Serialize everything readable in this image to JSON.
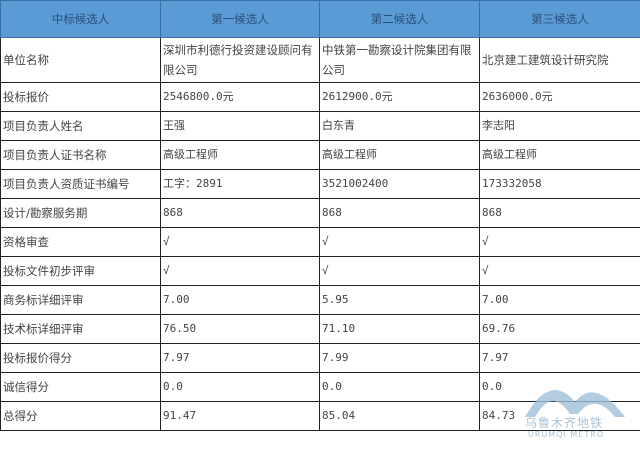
{
  "headers": [
    "中标候选人",
    "第一候选人",
    "第二候选人",
    "第三候选人"
  ],
  "rows": [
    {
      "label": "单位名称",
      "values": [
        "深圳市利德行投资建设顾问有限公司",
        "中铁第一勘察设计院集团有限公司",
        "北京建工建筑设计研究院"
      ]
    },
    {
      "label": "投标报价",
      "values": [
        "2546800.0元",
        "2612900.0元",
        "2636000.0元"
      ]
    },
    {
      "label": "项目负责人姓名",
      "values": [
        "王强",
        "白东青",
        "李志阳"
      ]
    },
    {
      "label": "项目负责人证书名称",
      "values": [
        "高级工程师",
        "高级工程师",
        "高级工程师"
      ]
    },
    {
      "label": "项目负责人资质证书编号",
      "values": [
        "工字：2891",
        "3521002400",
        "173332058"
      ]
    },
    {
      "label": "设计/勘察服务期",
      "values": [
        "868",
        "868",
        "868"
      ]
    },
    {
      "label": "资格审查",
      "values": [
        "√",
        "√",
        "√"
      ]
    },
    {
      "label": "投标文件初步评审",
      "values": [
        "√",
        "√",
        "√"
      ]
    },
    {
      "label": "商务标详细评审",
      "values": [
        "7.00",
        "5.95",
        "7.00"
      ]
    },
    {
      "label": "技术标详细评审",
      "values": [
        "76.50",
        "71.10",
        "69.76"
      ]
    },
    {
      "label": "投标报价得分",
      "values": [
        "7.97",
        "7.99",
        "7.97"
      ]
    },
    {
      "label": "诚信得分",
      "values": [
        "0.0",
        "0.0",
        "0.0"
      ]
    },
    {
      "label": "总得分",
      "values": [
        "91.47",
        "85.04",
        "84.73"
      ]
    }
  ],
  "watermark": {
    "cn": "乌鲁木齐地铁",
    "en": "URUMQI METRO"
  },
  "colors": {
    "header_bg": "#5b9bd5"
  }
}
